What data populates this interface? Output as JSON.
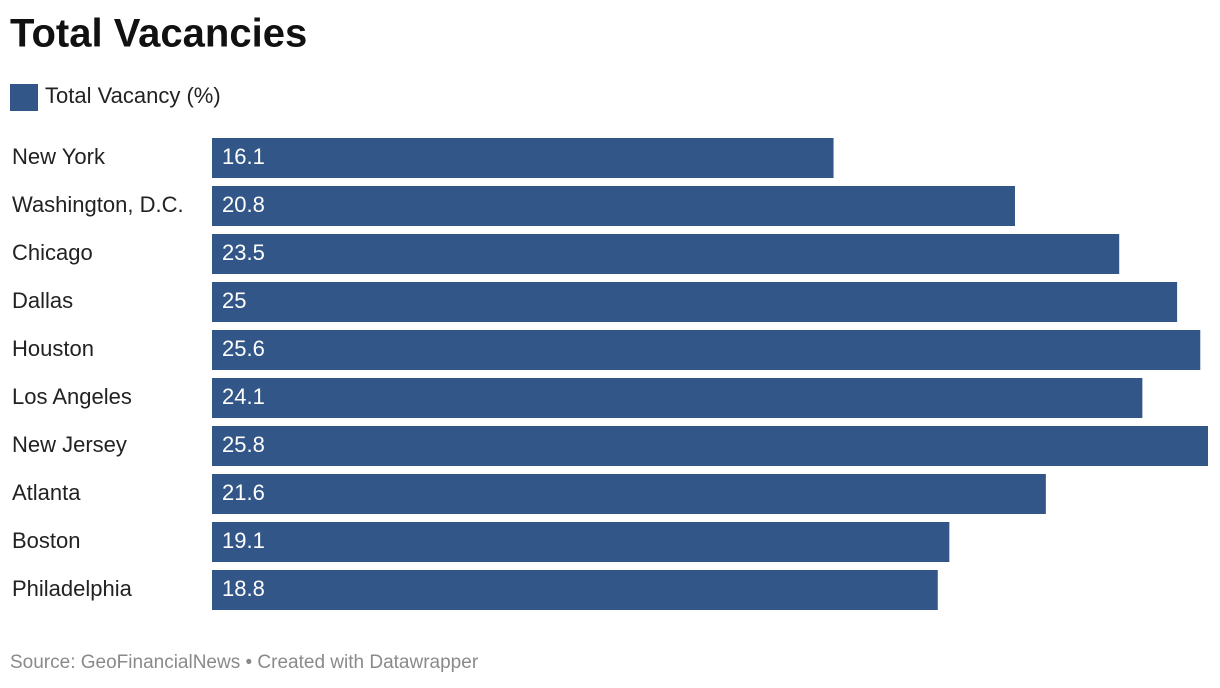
{
  "chart_data": {
    "type": "bar",
    "orientation": "horizontal",
    "title": "Total Vacancies",
    "categories": [
      "New York",
      "Washington, D.C.",
      "Chicago",
      "Dallas",
      "Houston",
      "Los Angeles",
      "New Jersey",
      "Atlanta",
      "Boston",
      "Philadelphia"
    ],
    "series": [
      {
        "name": "Total Vacancy (%)",
        "color": "#325688",
        "values": [
          16.1,
          20.8,
          23.5,
          25,
          25.6,
          24.1,
          25.8,
          21.6,
          19.1,
          18.8
        ]
      }
    ],
    "footer": "Source: GeoFinancialNews • Created with Datawrapper"
  }
}
